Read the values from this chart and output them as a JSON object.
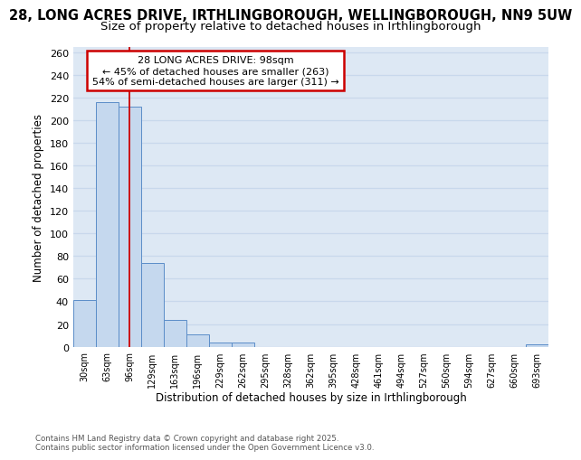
{
  "title_line1": "28, LONG ACRES DRIVE, IRTHLINGBOROUGH, WELLINGBOROUGH, NN9 5UW",
  "title_line2": "Size of property relative to detached houses in Irthlingborough",
  "xlabel": "Distribution of detached houses by size in Irthlingborough",
  "ylabel": "Number of detached properties",
  "bar_values": [
    41,
    216,
    212,
    74,
    24,
    11,
    4,
    4,
    0,
    0,
    0,
    0,
    0,
    0,
    0,
    0,
    0,
    0,
    0,
    0,
    2
  ],
  "categories": [
    "30sqm",
    "63sqm",
    "96sqm",
    "129sqm",
    "163sqm",
    "196sqm",
    "229sqm",
    "262sqm",
    "295sqm",
    "328sqm",
    "362sqm",
    "395sqm",
    "428sqm",
    "461sqm",
    "494sqm",
    "527sqm",
    "560sqm",
    "594sqm",
    "627sqm",
    "660sqm",
    "693sqm"
  ],
  "bar_color": "#c5d8ee",
  "bar_edge_color": "#5b8dc8",
  "grid_color": "#c8d8ec",
  "background_color": "#dde8f4",
  "vline_x_idx": 2,
  "vline_color": "#cc0000",
  "annotation_text": "28 LONG ACRES DRIVE: 98sqm\n← 45% of detached houses are smaller (263)\n54% of semi-detached houses are larger (311) →",
  "annotation_box_facecolor": "#ffffff",
  "annotation_border_color": "#cc0000",
  "ylim_max": 265,
  "yticks": [
    0,
    20,
    40,
    60,
    80,
    100,
    120,
    140,
    160,
    180,
    200,
    220,
    240,
    260
  ],
  "footer": "Contains HM Land Registry data © Crown copyright and database right 2025.\nContains public sector information licensed under the Open Government Licence v3.0.",
  "title_fontsize": 10.5,
  "subtitle_fontsize": 9.5
}
